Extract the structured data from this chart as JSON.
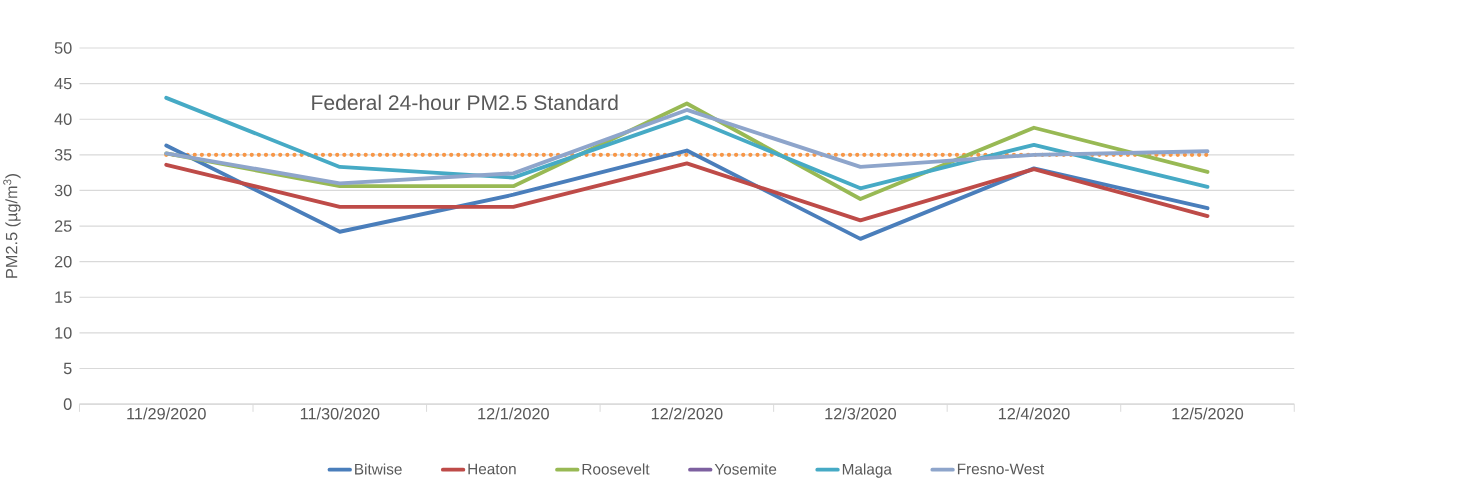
{
  "chart_data": {
    "type": "line",
    "ylabel": "PM2.5 (µg/m$^{3}$)",
    "categories": [
      "11/29/2020",
      "11/30/2020",
      "12/1/2020",
      "12/2/2020",
      "12/3/2020",
      "12/4/2020",
      "12/5/2020"
    ],
    "series": [
      {
        "name": "Bitwise",
        "color": "#4a7ebb",
        "values": [
          36.3,
          24.2,
          29.4,
          35.6,
          23.2,
          33.1,
          27.5
        ]
      },
      {
        "name": "Heaton",
        "color": "#be4b48",
        "values": [
          33.6,
          27.7,
          27.7,
          33.8,
          25.8,
          33.0,
          26.4
        ]
      },
      {
        "name": "Roosevelt",
        "color": "#98b954",
        "values": [
          35.2,
          30.6,
          30.6,
          42.2,
          28.8,
          38.8,
          32.6
        ]
      },
      {
        "name": "Yosemite",
        "color": "#7d60a0",
        "values": [
          null,
          null,
          null,
          null,
          null,
          null,
          null
        ]
      },
      {
        "name": "Malaga",
        "color": "#46aac5",
        "values": [
          43.0,
          33.3,
          31.8,
          40.3,
          30.3,
          36.4,
          30.5
        ]
      },
      {
        "name": "Fresno-West",
        "color": "#8ea5cb",
        "values": [
          35.2,
          31.0,
          32.4,
          41.3,
          33.3,
          35.0,
          35.5
        ]
      }
    ],
    "ylim": [
      0,
      50
    ],
    "yticks": [
      0,
      5,
      10,
      15,
      20,
      25,
      30,
      35,
      40,
      45,
      50
    ],
    "grid": "y",
    "legend": "bottom",
    "marker": "none",
    "line_style": "solid",
    "ref_lines": [
      {
        "axis": "y",
        "value": 35,
        "label": "Federal 24-hour PM2.5 Standard",
        "color": "#f79646",
        "line_style": "dotted"
      }
    ]
  }
}
